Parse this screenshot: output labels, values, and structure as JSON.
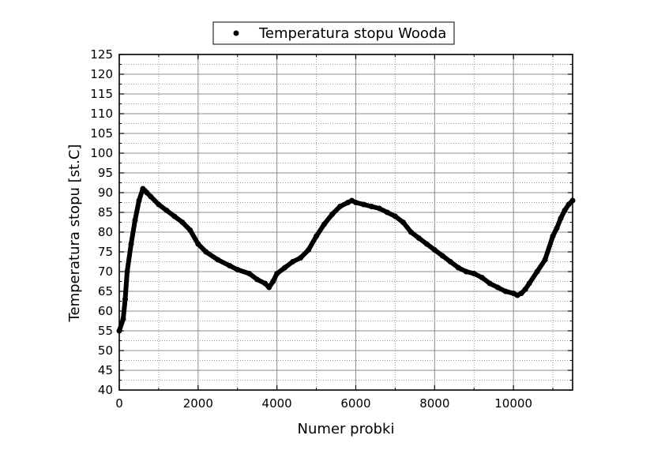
{
  "chart_data": {
    "type": "scatter",
    "title": "",
    "xlabel": "Numer probki",
    "ylabel": "Temperatura stopu [st.C]",
    "xlim": [
      0,
      11500
    ],
    "ylim": [
      40,
      125
    ],
    "x_ticks": [
      0,
      2000,
      4000,
      6000,
      8000,
      10000
    ],
    "x_tick_labels": [
      "0",
      "2000",
      "4000",
      "6000",
      "8000",
      "10000"
    ],
    "y_ticks": [
      40,
      45,
      50,
      55,
      60,
      65,
      70,
      75,
      80,
      85,
      90,
      95,
      100,
      105,
      110,
      115,
      120,
      125
    ],
    "y_tick_labels": [
      "40",
      "45",
      "50",
      "55",
      "60",
      "65",
      "70",
      "75",
      "80",
      "85",
      "90",
      "95",
      "100",
      "105",
      "110",
      "115",
      "120",
      "125"
    ],
    "grid": true,
    "legend_position": "top-center",
    "marker_color": "#000000",
    "series": [
      {
        "name": "Temperatura stopu Wooda",
        "x": [
          0,
          100,
          150,
          200,
          300,
          400,
          500,
          600,
          650,
          700,
          800,
          1000,
          1200,
          1400,
          1600,
          1800,
          2000,
          2200,
          2500,
          2800,
          3000,
          3300,
          3500,
          3700,
          3800,
          3900,
          4000,
          4200,
          4400,
          4600,
          4800,
          5000,
          5200,
          5400,
          5600,
          5800,
          5900,
          6000,
          6200,
          6400,
          6600,
          6800,
          7000,
          7200,
          7400,
          7600,
          7800,
          8000,
          8200,
          8400,
          8600,
          8800,
          9000,
          9200,
          9400,
          9600,
          9800,
          10000,
          10100,
          10200,
          10300,
          10400,
          10600,
          10800,
          11000,
          11100,
          11200,
          11300,
          11400,
          11500
        ],
        "y": [
          55,
          58,
          63,
          70,
          77,
          83,
          88,
          91,
          90.5,
          90,
          89,
          87,
          85.5,
          84,
          82.5,
          80.5,
          77,
          75,
          73,
          71.5,
          70.5,
          69.5,
          68,
          67,
          66,
          67.5,
          69.5,
          71,
          72.5,
          73.5,
          75.5,
          79,
          82,
          84.5,
          86.5,
          87.5,
          88,
          87.5,
          87,
          86.5,
          86,
          85,
          84,
          82.5,
          80,
          78.5,
          77,
          75.5,
          74,
          72.5,
          71,
          70,
          69.5,
          68.5,
          67,
          66,
          65,
          64.5,
          64,
          64.5,
          65.5,
          67,
          70,
          73,
          79,
          81,
          83.5,
          85.5,
          87,
          88
        ]
      }
    ]
  }
}
